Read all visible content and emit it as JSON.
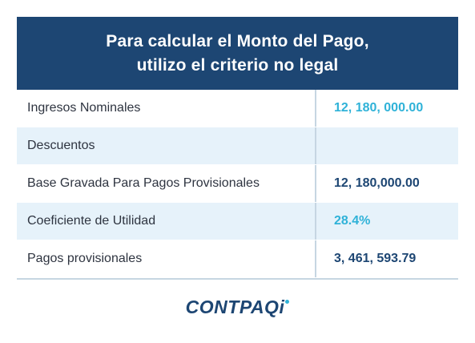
{
  "header": {
    "line1": "Para calcular el Monto del Pago,",
    "line2": "utilizo el criterio no legal"
  },
  "rows": [
    {
      "label": "Ingresos Nominales",
      "value": "12, 180, 000.00",
      "value_color": "#2fb2d8"
    },
    {
      "label": "Descuentos",
      "value": ""
    },
    {
      "label": "Base Gravada Para Pagos Provisionales",
      "value": "12, 180,000.00",
      "value_color": "#1d4673"
    },
    {
      "label": "Coeficiente de Utilidad",
      "value": "28.4%",
      "value_color": "#2fb2d8"
    },
    {
      "label": "Pagos provisionales",
      "value": "3, 461, 593.79",
      "value_color": "#1d4673"
    }
  ],
  "logo": {
    "text": "CONTPAQ",
    "suffix": "i"
  },
  "colors": {
    "header_bg": "#1d4673",
    "shaded_row": "#e6f2fa",
    "accent_cyan": "#2fb2d8",
    "navy": "#1d4673"
  }
}
